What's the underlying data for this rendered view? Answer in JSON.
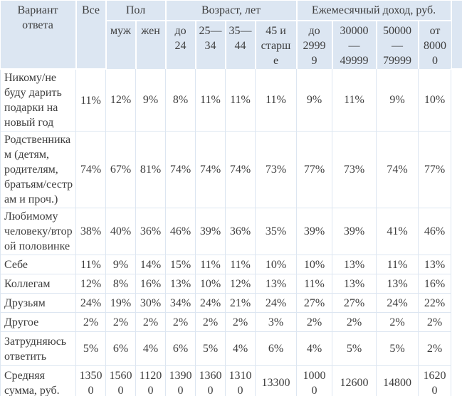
{
  "colors": {
    "header_bg": "#dce6f2",
    "grid_line": "#dde6f1",
    "text": "#3d3d3d",
    "header_separator": "#ffffff"
  },
  "table": {
    "header": {
      "answer_option": "Вариант\nответа",
      "all": "Все",
      "groups": {
        "gender": "Пол",
        "age": "Возраст, лет",
        "income": "Ежемесячный доход, руб."
      },
      "subcolumns": [
        "муж",
        "жен",
        "до\n24",
        "25—\n34",
        "35—\n44",
        "45 и\nстарш\nе",
        "до\n2999\n9",
        "30000\n—\n49999",
        "50000\n—\n79999",
        "от\n8000\n0"
      ]
    },
    "rows": [
      {
        "label": "Никому/не\nбуду дарить\nподарки на\nновый год",
        "values": [
          "11%",
          "12%",
          "9%",
          "8%",
          "11%",
          "11%",
          "11%",
          "9%",
          "11%",
          "9%",
          "10%"
        ]
      },
      {
        "label": "Родственника\nм (детям,\nродителям,\nбратьям/сестр\nам и проч.)",
        "values": [
          "74%",
          "67%",
          "81%",
          "74%",
          "74%",
          "74%",
          "73%",
          "77%",
          "73%",
          "74%",
          "77%"
        ]
      },
      {
        "label": "Любимому\nчеловеку/втор\nой половинке",
        "values": [
          "38%",
          "40%",
          "36%",
          "46%",
          "39%",
          "36%",
          "35%",
          "39%",
          "39%",
          "41%",
          "46%"
        ]
      },
      {
        "label": "Себе",
        "values": [
          "11%",
          "9%",
          "14%",
          "15%",
          "11%",
          "11%",
          "10%",
          "10%",
          "13%",
          "11%",
          "13%"
        ]
      },
      {
        "label": "Коллегам",
        "values": [
          "12%",
          "8%",
          "16%",
          "13%",
          "10%",
          "12%",
          "13%",
          "11%",
          "13%",
          "13%",
          "16%"
        ]
      },
      {
        "label": "Друзьям",
        "values": [
          "24%",
          "19%",
          "30%",
          "34%",
          "24%",
          "21%",
          "24%",
          "27%",
          "27%",
          "24%",
          "22%"
        ]
      },
      {
        "label": "Другое",
        "values": [
          "2%",
          "2%",
          "2%",
          "2%",
          "2%",
          "2%",
          "3%",
          "2%",
          "2%",
          "2%",
          "2%"
        ]
      },
      {
        "label": "Затрудняюсь\nответить",
        "values": [
          "5%",
          "6%",
          "4%",
          "6%",
          "5%",
          "4%",
          "6%",
          "4%",
          "5%",
          "5%",
          "2%"
        ]
      },
      {
        "label": "Средняя\nсумма, руб.",
        "values": [
          "1350\n0",
          "1560\n0",
          "1120\n0",
          "1390\n0",
          "1360\n0",
          "1310\n0",
          "13300",
          "1000\n0",
          "12600",
          "14800",
          "1620\n0"
        ]
      }
    ]
  }
}
